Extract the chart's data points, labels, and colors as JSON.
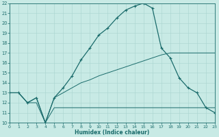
{
  "xlabel": "Humidex (Indice chaleur)",
  "xlim": [
    0,
    23
  ],
  "ylim": [
    10,
    22
  ],
  "xticks": [
    0,
    1,
    2,
    3,
    4,
    5,
    6,
    7,
    8,
    9,
    10,
    11,
    12,
    13,
    14,
    15,
    16,
    17,
    18,
    19,
    20,
    21,
    22,
    23
  ],
  "yticks": [
    10,
    11,
    12,
    13,
    14,
    15,
    16,
    17,
    18,
    19,
    20,
    21,
    22
  ],
  "bg_color": "#c8eae5",
  "line_color": "#1a6b6b",
  "grid_color": "#a8d4ce",
  "line1_x": [
    0,
    1,
    2,
    3,
    4,
    5,
    6,
    7,
    8,
    9,
    10,
    11,
    12,
    13,
    14,
    15,
    16,
    17,
    18,
    19,
    20,
    21,
    22,
    23
  ],
  "line1_y": [
    13,
    13,
    12,
    12,
    10,
    11.5,
    11.5,
    11.5,
    11.5,
    11.5,
    11.5,
    11.5,
    11.5,
    11.5,
    11.5,
    11.5,
    11.5,
    11.5,
    11.5,
    11.5,
    11.5,
    11.5,
    11.5,
    11.5
  ],
  "line2_x": [
    0,
    1,
    2,
    3,
    4,
    5,
    6,
    7,
    8,
    9,
    10,
    11,
    12,
    13,
    14,
    15,
    16,
    17,
    18,
    19,
    20,
    21,
    22,
    23
  ],
  "line2_y": [
    13,
    13,
    12,
    12.5,
    10,
    12.5,
    13.0,
    13.5,
    14.0,
    14.3,
    14.7,
    15.0,
    15.3,
    15.6,
    15.9,
    16.2,
    16.5,
    16.8,
    17.0,
    17.0,
    17.0,
    17.0,
    17.0,
    17.0
  ],
  "line3_x": [
    0,
    1,
    2,
    3,
    4,
    5,
    6,
    7,
    8,
    9,
    10,
    11,
    12,
    13,
    14,
    15,
    16,
    17,
    18,
    19,
    20,
    21,
    22,
    23
  ],
  "line3_y": [
    13,
    13,
    12,
    12.5,
    10,
    12.5,
    13.5,
    14.7,
    16.3,
    17.5,
    18.8,
    19.5,
    20.5,
    21.3,
    21.7,
    22.0,
    21.5,
    17.5,
    16.5,
    14.5,
    13.5,
    13.0,
    11.5,
    11.0
  ]
}
